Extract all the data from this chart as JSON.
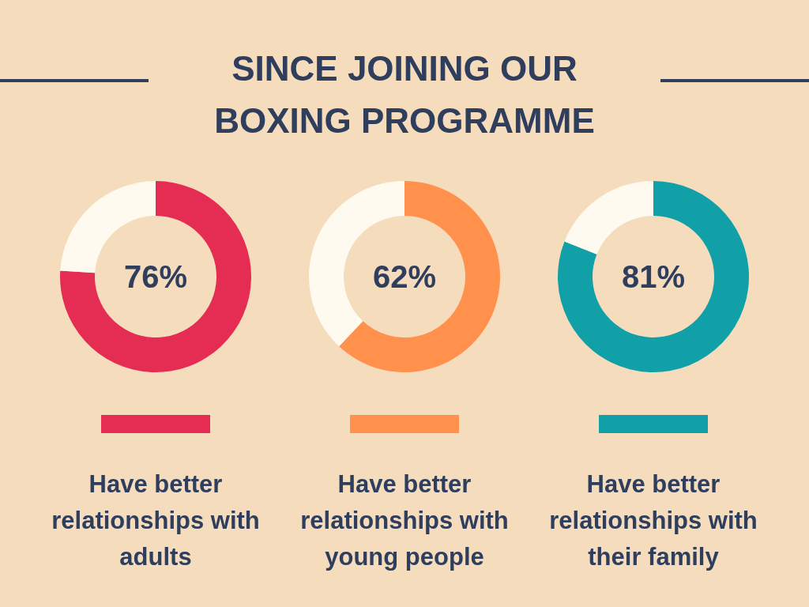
{
  "chart_data": [
    {
      "type": "other",
      "title": "SINCE JOINING OUR BOXING PROGRAMME"
    },
    {
      "type": "donut",
      "categories": [
        null,
        null
      ],
      "values": [
        76,
        24
      ],
      "colors": [
        "#e52d54",
        "#fffaf0"
      ],
      "annotations": [
        "76%"
      ],
      "xlabel": "Have better relationships with adults"
    },
    {
      "type": "donut",
      "categories": [
        null,
        null
      ],
      "values": [
        62,
        38
      ],
      "colors": [
        "#ff914d",
        "#fffaf0"
      ],
      "annotations": [
        "62%"
      ],
      "xlabel": "Have better relationships with young people"
    },
    {
      "type": "donut",
      "categories": [
        null,
        null
      ],
      "values": [
        81,
        19
      ],
      "colors": [
        "#12a0a8",
        "#fffaf0"
      ],
      "annotations": [
        "81%"
      ],
      "xlabel": "Have better relationships with their family"
    }
  ]
}
